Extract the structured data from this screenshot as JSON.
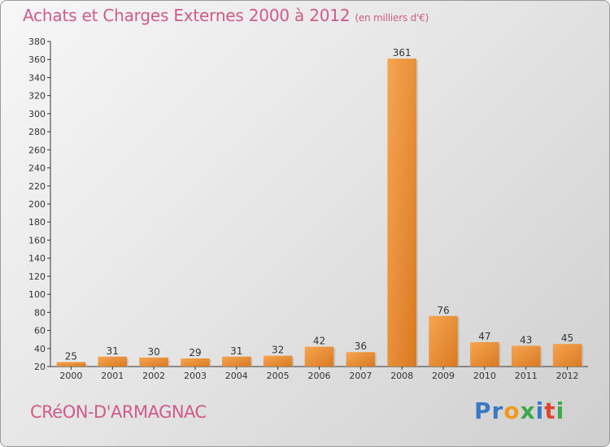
{
  "header": {
    "title": "Achats et Charges Externes 2000 à 2012",
    "unit": "(en milliers d'€)"
  },
  "footer": {
    "city": "CRéON-D'ARMAGNAC",
    "logo_letters": [
      "P",
      "r",
      "o",
      "x",
      "i",
      "t",
      "i"
    ]
  },
  "colors": {
    "title": "#d05a8a",
    "bar_light": "#f6a550",
    "bar_dark": "#d97a22",
    "logo": [
      "#3b79c4",
      "#3b79c4",
      "#f29a1d",
      "#3aa84b",
      "#3b79c4",
      "#e2452f",
      "#3aa84b"
    ]
  },
  "chart_data": {
    "type": "bar",
    "categories": [
      "2000",
      "2001",
      "2002",
      "2003",
      "2004",
      "2005",
      "2006",
      "2007",
      "2008",
      "2009",
      "2010",
      "2011",
      "2012"
    ],
    "values": [
      25,
      31,
      30,
      29,
      31,
      32,
      42,
      36,
      361,
      76,
      47,
      43,
      45
    ],
    "data_labels": [
      "25",
      "31",
      "30",
      "29",
      "31",
      "32",
      "42",
      "36",
      "361",
      "76",
      "47",
      "43",
      "45"
    ],
    "ylim": [
      20,
      380
    ],
    "yticks": [
      "20",
      "40",
      "60",
      "80",
      "100",
      "120",
      "140",
      "160",
      "180",
      "200",
      "220",
      "240",
      "260",
      "280",
      "300",
      "320",
      "340",
      "360",
      "380"
    ],
    "grid": false,
    "legend": "none"
  }
}
